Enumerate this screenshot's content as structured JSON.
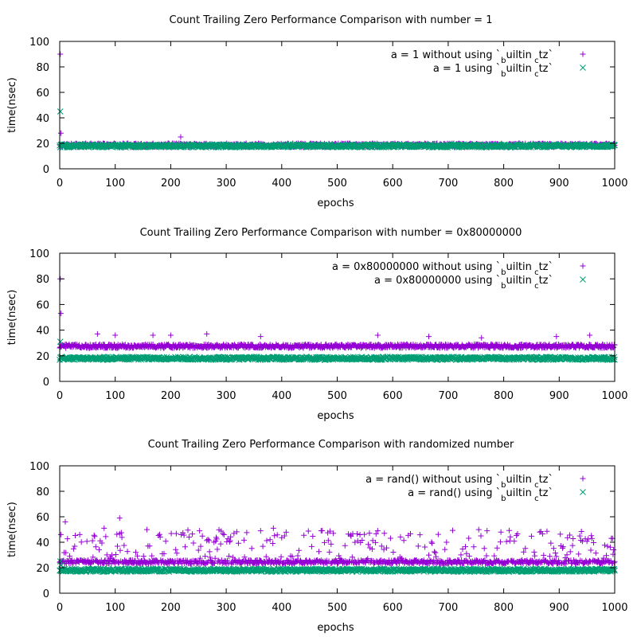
{
  "chart_data": [
    {
      "type": "scatter",
      "title": "Count Trailing Zero Performance Comparison with number = 1",
      "xlabel": "epochs",
      "ylabel": "time(nsec)",
      "xlim": [
        0,
        1000
      ],
      "ylim": [
        0,
        100
      ],
      "xticks": [
        "0",
        "100",
        "200",
        "300",
        "400",
        "500",
        "600",
        "700",
        "800",
        "900",
        "1000"
      ],
      "yticks": [
        "0",
        "20",
        "40",
        "60",
        "80",
        "100"
      ],
      "grid": false,
      "legend_position": "top-right",
      "series": [
        {
          "name": "a = 1 without using `__builtin_ctz`",
          "legend_parts": [
            "a = 1 without using `",
            "b",
            "uiltin",
            "c",
            "tz`"
          ],
          "marker": "plus",
          "color": "#9400d3",
          "baseline": 18.5,
          "jitter": 1.5,
          "outliers": [
            [
              1,
              90
            ],
            [
              2,
              28
            ],
            [
              218,
              25
            ]
          ]
        },
        {
          "name": "a = 1 using `__builtin_ctz`",
          "legend_parts": [
            "a = 1 using `",
            "b",
            "uiltin",
            "c",
            "tz`"
          ],
          "marker": "cross",
          "color": "#009e73",
          "baseline": 18,
          "jitter": 1.2,
          "outliers": [
            [
              1,
              45
            ]
          ]
        }
      ]
    },
    {
      "type": "scatter",
      "title": "Count Trailing Zero Performance Comparison with number = 0x80000000",
      "xlabel": "epochs",
      "ylabel": "time(nsec)",
      "xlim": [
        0,
        1000
      ],
      "ylim": [
        0,
        100
      ],
      "xticks": [
        "0",
        "100",
        "200",
        "300",
        "400",
        "500",
        "600",
        "700",
        "800",
        "900",
        "1000"
      ],
      "yticks": [
        "0",
        "20",
        "40",
        "60",
        "80",
        "100"
      ],
      "grid": false,
      "legend_position": "top-right",
      "series": [
        {
          "name": "a = 0x80000000 without using `__builtin_ctz`",
          "legend_parts": [
            "a = 0x80000000 without using `",
            "b",
            "uiltin",
            "c",
            "tz`"
          ],
          "marker": "plus",
          "color": "#9400d3",
          "baseline": 27.5,
          "jitter": 1.5,
          "outliers": [
            [
              1,
              80
            ],
            [
              2,
              53
            ],
            [
              68,
              37
            ],
            [
              100,
              36
            ],
            [
              168,
              36
            ],
            [
              200,
              36
            ],
            [
              265,
              37
            ],
            [
              362,
              35
            ],
            [
              573,
              36
            ],
            [
              665,
              35
            ],
            [
              760,
              34
            ],
            [
              895,
              35
            ],
            [
              955,
              36
            ]
          ]
        },
        {
          "name": "a = 0x80000000 using `__builtin_ctz`",
          "legend_parts": [
            "a = 0x80000000 using `",
            "b",
            "uiltin",
            "c",
            "tz`"
          ],
          "marker": "cross",
          "color": "#009e73",
          "baseline": 18,
          "jitter": 1.2,
          "outliers": [
            [
              1,
              31
            ]
          ]
        }
      ]
    },
    {
      "type": "scatter",
      "title": "Count Trailing Zero Performance Comparison with randomized number",
      "xlabel": "epochs",
      "ylabel": "time(nsec)",
      "xlim": [
        0,
        1000
      ],
      "ylim": [
        0,
        100
      ],
      "xticks": [
        "0",
        "100",
        "200",
        "300",
        "400",
        "500",
        "600",
        "700",
        "800",
        "900",
        "1000"
      ],
      "yticks": [
        "0",
        "20",
        "40",
        "60",
        "80",
        "100"
      ],
      "grid": false,
      "legend_position": "top-right",
      "series": [
        {
          "name": "a = rand() without using `__builtin_ctz`",
          "legend_parts": [
            "a = rand() without using `",
            "b",
            "uiltin",
            "c",
            "tz`"
          ],
          "marker": "plus",
          "color": "#9400d3",
          "baseline": 24.5,
          "jitter": 1.5,
          "scatter_fraction": 0.25,
          "scatter_range": [
            27,
            50
          ],
          "outliers": [
            [
              2,
              46
            ],
            [
              10,
              56
            ],
            [
              108,
              59
            ],
            [
              80,
              51
            ],
            [
              385,
              51
            ],
            [
              362,
              49
            ],
            [
              471,
              49
            ],
            [
              585,
              47
            ],
            [
              770,
              49
            ],
            [
              252,
              49
            ],
            [
              996,
              43
            ]
          ]
        },
        {
          "name": "a = rand() using `__builtin_ctz`",
          "legend_parts": [
            "a = rand() using `",
            "b",
            "uiltin",
            "c",
            "tz`"
          ],
          "marker": "cross",
          "color": "#009e73",
          "baseline": 18,
          "jitter": 1.2,
          "outliers": [
            [
              1,
              25
            ],
            [
              3,
              22
            ]
          ]
        }
      ]
    }
  ]
}
